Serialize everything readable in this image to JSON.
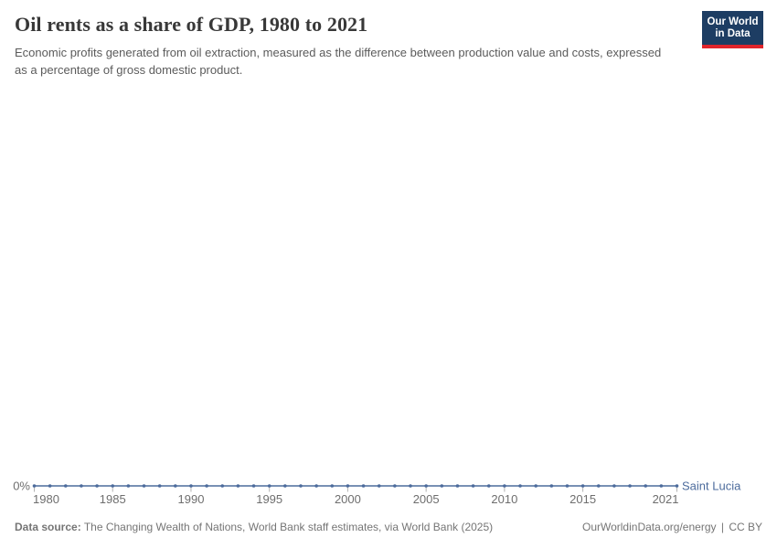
{
  "header": {
    "title": "Oil rents as a share of GDP, 1980 to 2021",
    "subtitle": "Economic profits generated from oil extraction, measured as the difference between production value and costs, expressed as a percentage of gross domestic product.",
    "logo": {
      "line1": "Our World",
      "line2": "in Data"
    }
  },
  "chart_data": {
    "type": "line",
    "title": "Oil rents as a share of GDP, 1980 to 2021",
    "xlabel": "",
    "ylabel": "",
    "xlim": [
      1980,
      2021
    ],
    "x_ticks": [
      1980,
      1985,
      1990,
      1995,
      2000,
      2005,
      2010,
      2015,
      2021
    ],
    "y_ticks": [
      {
        "value": 0,
        "label": "0%"
      }
    ],
    "grid": false,
    "legend_position": "end-of-line",
    "x": [
      1980,
      1981,
      1982,
      1983,
      1984,
      1985,
      1986,
      1987,
      1988,
      1989,
      1990,
      1991,
      1992,
      1993,
      1994,
      1995,
      1996,
      1997,
      1998,
      1999,
      2000,
      2001,
      2002,
      2003,
      2004,
      2005,
      2006,
      2007,
      2008,
      2009,
      2010,
      2011,
      2012,
      2013,
      2014,
      2015,
      2016,
      2017,
      2018,
      2019,
      2020,
      2021
    ],
    "series": [
      {
        "name": "Saint Lucia",
        "color": "#4C6B9C",
        "values": [
          0,
          0,
          0,
          0,
          0,
          0,
          0,
          0,
          0,
          0,
          0,
          0,
          0,
          0,
          0,
          0,
          0,
          0,
          0,
          0,
          0,
          0,
          0,
          0,
          0,
          0,
          0,
          0,
          0,
          0,
          0,
          0,
          0,
          0,
          0,
          0,
          0,
          0,
          0,
          0,
          0,
          0
        ]
      }
    ],
    "axis_color": "#6e6e6e",
    "tick_mark_color": "#999999"
  },
  "footer": {
    "data_source_label": "Data source:",
    "data_source": " The Changing Wealth of Nations, World Bank staff estimates, via World Bank (2025)",
    "link": "OurWorldinData.org/energy",
    "separator": "|",
    "license": "CC BY"
  }
}
